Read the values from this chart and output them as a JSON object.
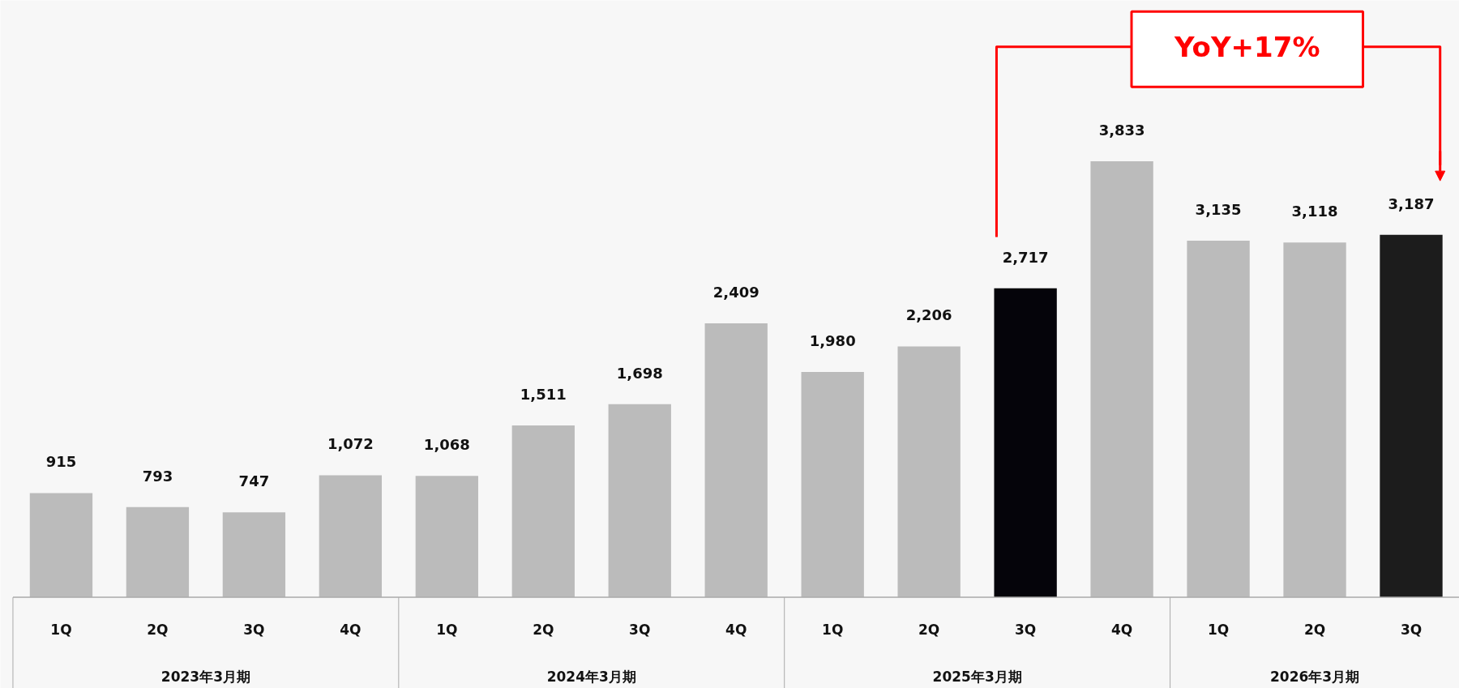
{
  "chart_data": {
    "type": "bar",
    "categories": [
      "1Q",
      "2Q",
      "3Q",
      "4Q",
      "1Q",
      "2Q",
      "3Q",
      "4Q",
      "1Q",
      "2Q",
      "3Q",
      "4Q",
      "1Q",
      "2Q",
      "3Q"
    ],
    "values": [
      915,
      793,
      747,
      1072,
      1068,
      1511,
      1698,
      2409,
      1980,
      2206,
      2717,
      3833,
      3135,
      3118,
      3187
    ],
    "colors": [
      "#bbbbbb",
      "#bbbbbb",
      "#bbbbbb",
      "#bbbbbb",
      "#bbbbbb",
      "#bbbbbb",
      "#bbbbbb",
      "#bbbbbb",
      "#bbbbbb",
      "#bbbbbb",
      "#05040a",
      "#bbbbbb",
      "#bbbbbb",
      "#bbbbbb",
      "#1c1c1c"
    ],
    "value_labels": [
      "915",
      "793",
      "747",
      "1,072",
      "1,068",
      "1,511",
      "1,698",
      "2,409",
      "1,980",
      "2,206",
      "2,717",
      "3,833",
      "3,135",
      "3,118",
      "3,187"
    ],
    "annotations": [
      "2023年3月期",
      "2024年3月期",
      "2025年3月期",
      "2026年3月期",
      "YoY+17%"
    ]
  }
}
